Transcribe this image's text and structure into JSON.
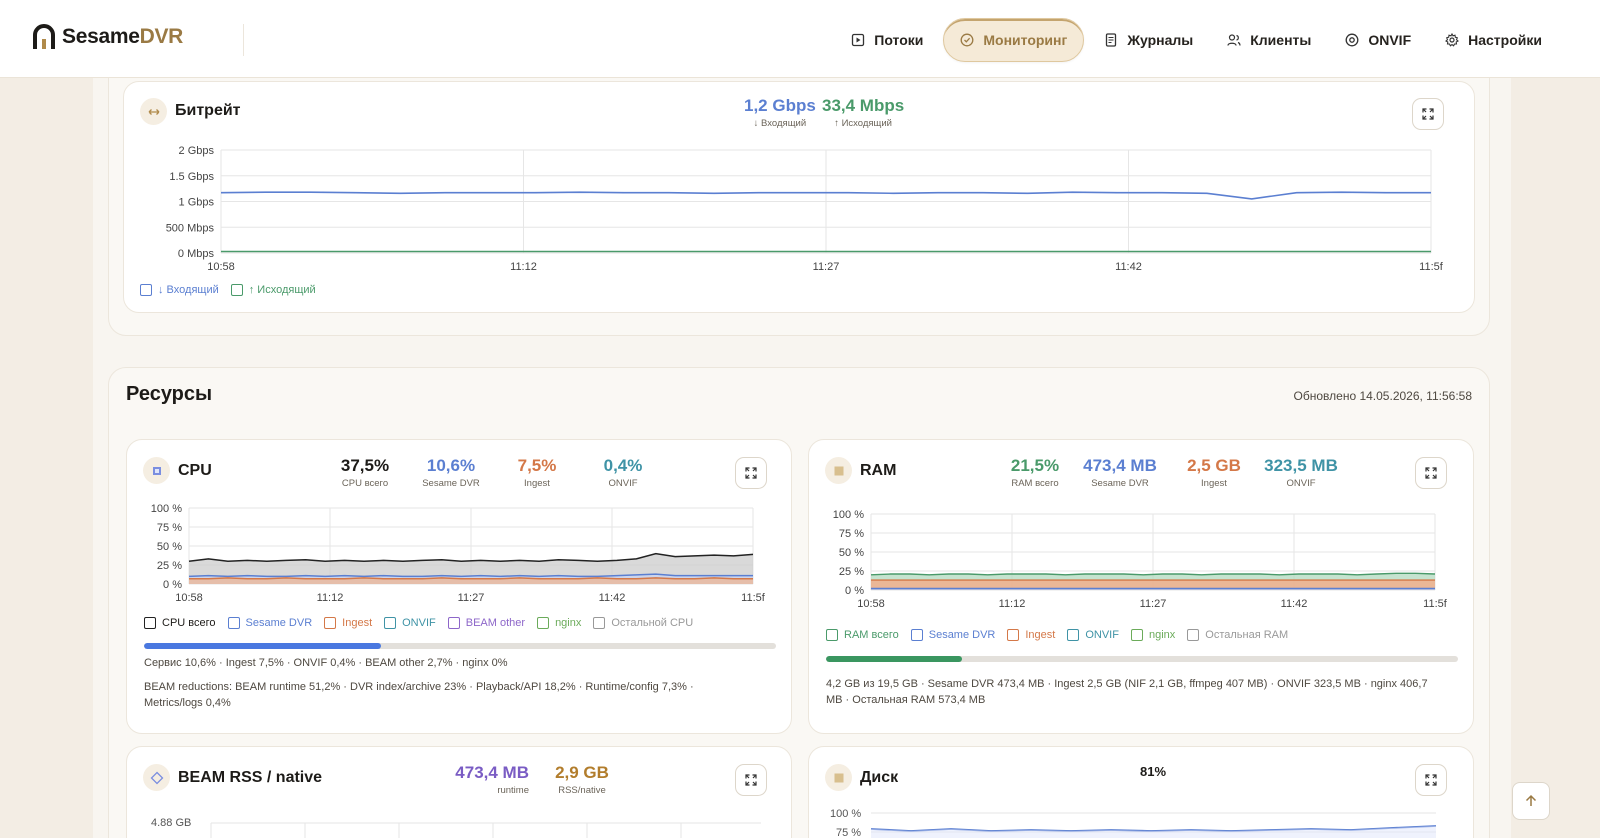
{
  "app": {
    "brand_main": "Sesame",
    "brand_accent": "DVR",
    "accent_color": "#9a7a44"
  },
  "nav": {
    "items": [
      {
        "label": "Потоки",
        "icon": "streams-icon",
        "active": false
      },
      {
        "label": "Мониторинг",
        "icon": "monitor-icon",
        "active": true
      },
      {
        "label": "Журналы",
        "icon": "logs-icon",
        "active": false
      },
      {
        "label": "Клиенты",
        "icon": "clients-icon",
        "active": false
      },
      {
        "label": "ONVIF",
        "icon": "onvif-icon",
        "active": false
      },
      {
        "label": "Настройки",
        "icon": "gear-icon",
        "active": false
      }
    ]
  },
  "bitrate": {
    "title": "Битрейт",
    "in_value": "1,2 Gbps",
    "in_label": "↓ Входящий",
    "out_value": "33,4 Mbps",
    "out_label": "↑ Исходящий",
    "legend": [
      "↓ Входящий",
      "↑ Исходящий"
    ],
    "chart_data": {
      "type": "line",
      "x_ticks": [
        "10:58",
        "11:12",
        "11:27",
        "11:42",
        "11:5f"
      ],
      "y_ticks": [
        "2 Gbps",
        "1.5 Gbps",
        "1 Gbps",
        "500 Mbps",
        "0 Mbps"
      ],
      "y_range": [
        0,
        2
      ],
      "y_unit": "Gbps",
      "series": [
        {
          "name": "↓ Входящий",
          "color": "#5b7fd1",
          "values": [
            1.17,
            1.18,
            1.18,
            1.17,
            1.16,
            1.17,
            1.17,
            1.17,
            1.18,
            1.17,
            1.17,
            1.16,
            1.17,
            1.17,
            1.17,
            1.16,
            1.17,
            1.17,
            1.16,
            1.18,
            1.17,
            1.17,
            1.16,
            1.05,
            1.17,
            1.18,
            1.17,
            1.17
          ]
        },
        {
          "name": "↑ Исходящий",
          "color": "#4a9a6a",
          "values": [
            0.03,
            0.03,
            0.03,
            0.03,
            0.03,
            0.03,
            0.03,
            0.03,
            0.03,
            0.03,
            0.03,
            0.03,
            0.03,
            0.03,
            0.03,
            0.03,
            0.03,
            0.03,
            0.03,
            0.03,
            0.03,
            0.03,
            0.03,
            0.03,
            0.03,
            0.03,
            0.03,
            0.03
          ]
        }
      ]
    }
  },
  "resources": {
    "title": "Ресурсы",
    "updated": "Обновлено 14.05.2026, 11:56:58"
  },
  "cpu": {
    "title": "CPU",
    "stats": [
      {
        "value": "37,5%",
        "label": "CPU всего",
        "color": "#1d1b18"
      },
      {
        "value": "10,6%",
        "label": "Sesame DVR",
        "color": "#5b7fd1"
      },
      {
        "value": "7,5%",
        "label": "Ingest",
        "color": "#d47848"
      },
      {
        "value": "0,4%",
        "label": "ONVIF",
        "color": "#3f93a6"
      }
    ],
    "legend": [
      {
        "label": "CPU всего",
        "color": "#222222"
      },
      {
        "label": "Sesame DVR",
        "color": "#5b7fd1"
      },
      {
        "label": "Ingest",
        "color": "#d47848"
      },
      {
        "label": "ONVIF",
        "color": "#3f93a6"
      },
      {
        "label": "BEAM other",
        "color": "#8d66c9"
      },
      {
        "label": "nginx",
        "color": "#6bab5a"
      },
      {
        "label": "Остальной CPU",
        "color": "#999999"
      }
    ],
    "usage_fraction": 0.375,
    "usage_color": "#4a78e0",
    "line1": "Сервис 10,6% · Ingest 7,5% · ONVIF 0,4% · BEAM other 2,7% · nginx 0%",
    "line2": "BEAM reductions: BEAM runtime 51,2% · DVR index/archive 23% · Playback/API 18,2% · Runtime/config 7,3% ·",
    "line3": "Metrics/logs 0,4%",
    "chart_data": {
      "type": "area",
      "x_ticks": [
        "10:58",
        "11:12",
        "11:27",
        "11:42",
        "11:5f"
      ],
      "y_ticks": [
        "100 %",
        "75 %",
        "50 %",
        "25 %",
        "0 %"
      ],
      "y_range": [
        0,
        100
      ],
      "series": [
        {
          "name": "CPU всего",
          "color": "#222222",
          "values": [
            30,
            33,
            30,
            31,
            30,
            31,
            32,
            30,
            31,
            30,
            31,
            30,
            31,
            32,
            30,
            31,
            30,
            31,
            30,
            32,
            31,
            30,
            31,
            33,
            40,
            36,
            37,
            38,
            37,
            39
          ]
        },
        {
          "name": "Sesame DVR",
          "color": "#5b7fd1",
          "values": [
            10,
            11,
            10,
            11,
            10,
            10,
            11,
            10,
            11,
            10,
            11,
            10,
            10,
            11,
            10,
            11,
            10,
            11,
            10,
            11,
            10,
            10,
            11,
            12,
            13,
            11,
            11,
            11,
            11,
            11
          ]
        },
        {
          "name": "Ingest",
          "color": "#d47848",
          "values": [
            7,
            7,
            8,
            7,
            7,
            8,
            7,
            7,
            7,
            8,
            7,
            7,
            7,
            8,
            7,
            7,
            7,
            8,
            7,
            7,
            7,
            8,
            7,
            7,
            8,
            7,
            7,
            8,
            7,
            7
          ]
        }
      ]
    }
  },
  "ram": {
    "title": "RAM",
    "stats": [
      {
        "value": "21,5%",
        "label": "RAM всего",
        "color": "#4a9a6a"
      },
      {
        "value": "473,4 MB",
        "label": "Sesame DVR",
        "color": "#5b7fd1"
      },
      {
        "value": "2,5 GB",
        "label": "Ingest",
        "color": "#d47848"
      },
      {
        "value": "323,5 MB",
        "label": "ONVIF",
        "color": "#3f93a6"
      }
    ],
    "legend": [
      {
        "label": "RAM всего",
        "color": "#4a9a6a"
      },
      {
        "label": "Sesame DVR",
        "color": "#5b7fd1"
      },
      {
        "label": "Ingest",
        "color": "#d47848"
      },
      {
        "label": "ONVIF",
        "color": "#3f93a6"
      },
      {
        "label": "nginx",
        "color": "#6bab5a"
      },
      {
        "label": "Остальная RAM",
        "color": "#999999"
      }
    ],
    "usage_fraction": 0.215,
    "usage_color": "#3a9660",
    "line1": "4,2 GB из 19,5 GB · Sesame DVR 473,4 MB · Ingest 2,5 GB (NIF 2,1 GB, ffmpeg 407 MB) · ONVIF 323,5 MB · nginx 406,7",
    "line2": "MB · Остальная RAM 573,4 MB",
    "chart_data": {
      "type": "area",
      "x_ticks": [
        "10:58",
        "11:12",
        "11:27",
        "11:42",
        "11:5f"
      ],
      "y_ticks": [
        "100 %",
        "75 %",
        "50 %",
        "25 %",
        "0 %"
      ],
      "y_range": [
        0,
        100
      ],
      "series": [
        {
          "name": "RAM всего",
          "color": "#4a9a6a",
          "values": [
            20,
            21,
            21,
            20,
            21,
            21,
            20,
            21,
            21,
            21,
            20,
            21,
            21,
            21,
            20,
            21,
            21,
            20,
            21,
            21,
            21,
            20,
            21,
            21,
            21,
            20,
            21,
            22,
            22,
            21
          ]
        },
        {
          "name": "Ingest",
          "color": "#d47848",
          "values": [
            13,
            13,
            13,
            13,
            13,
            13,
            13,
            13,
            13,
            13,
            13,
            13,
            13,
            13,
            13,
            13,
            13,
            13,
            13,
            13,
            13,
            13,
            13,
            13,
            13,
            13,
            13,
            13,
            13,
            13
          ]
        },
        {
          "name": "Sesame DVR",
          "color": "#5b7fd1",
          "values": [
            2,
            2,
            2,
            2,
            2,
            2,
            2,
            2,
            2,
            2,
            2,
            2,
            2,
            2,
            2,
            2,
            2,
            2,
            2,
            2,
            2,
            2,
            2,
            2,
            2,
            2,
            2,
            2,
            2,
            2
          ]
        }
      ]
    }
  },
  "beam": {
    "title": "BEAM RSS / native",
    "stats": [
      {
        "value": "473,4 MB",
        "label": "runtime",
        "color": "#7a5cc4"
      },
      {
        "value": "2,9 GB",
        "label": "RSS/native",
        "color": "#b27d2c"
      }
    ],
    "y_top": "4.88 GB"
  },
  "disk": {
    "title": "Диск",
    "value": "81%",
    "y_ticks": [
      "100 %",
      "75 %"
    ]
  }
}
